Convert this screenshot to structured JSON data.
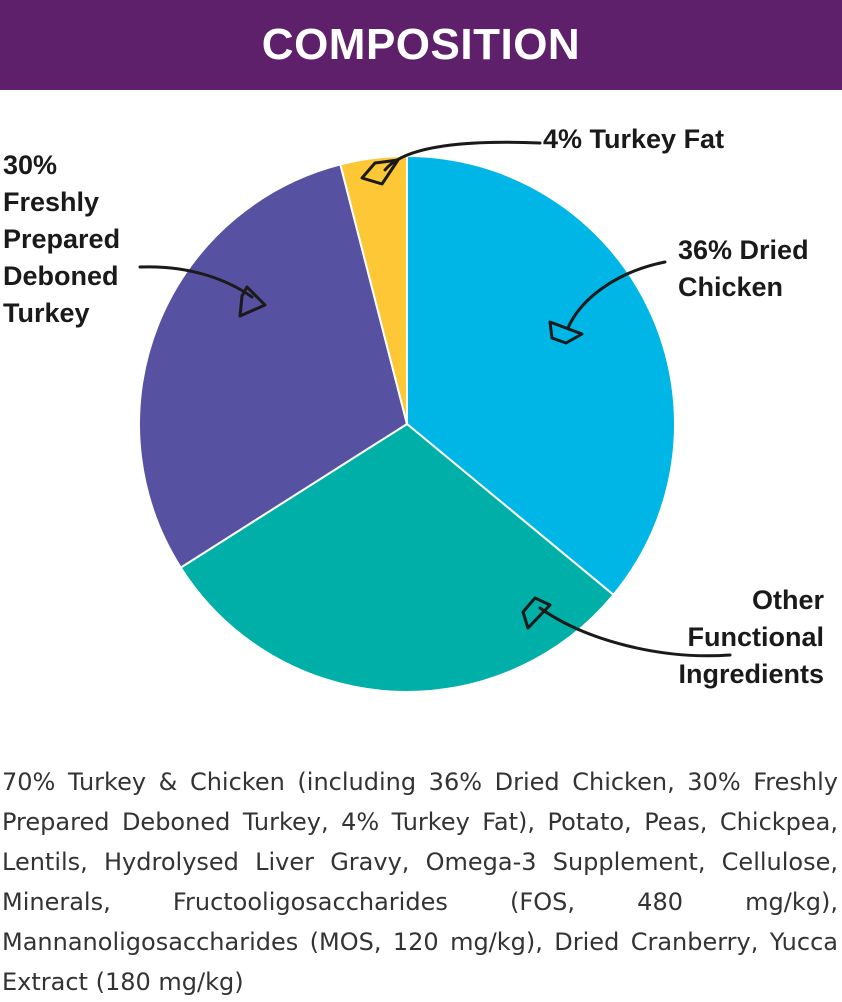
{
  "header": {
    "title": "COMPOSITION"
  },
  "chart_data": {
    "type": "pie",
    "title": "",
    "slices": [
      {
        "label": "36% Dried Chicken",
        "value": 36,
        "color": "#00b6e6"
      },
      {
        "label": "Other Functional Ingredients",
        "value": 30,
        "color": "#00b0a8"
      },
      {
        "label": "30% Freshly Prepared Deboned Turkey",
        "value": 30,
        "color": "#5651a1"
      },
      {
        "label": "4% Turkey Fat",
        "value": 4,
        "color": "#fdc735"
      }
    ]
  },
  "labels": {
    "turkey_fat": "4% Turkey Fat",
    "dried_chicken": "36% Dried\nChicken",
    "deboned_turkey": "30%\nFreshly\nPrepared\nDeboned\nTurkey",
    "other": "Other\nFunctional\nIngredients"
  },
  "ingredients_text": "70% Turkey & Chicken (including 36% Dried Chicken, 30% Freshly Prepared Deboned Turkey, 4% Turkey Fat), Potato, Peas, Chickpea, Lentils,  Hydrolysed Liver Gravy, Omega-3 Supplement, Cellulose, Minerals, Fructooligosaccharides (FOS, 480 mg/kg), Mannanoligosaccharides (MOS, 120 mg/kg), Dried Cranberry, Yucca Extract (180 mg/kg)"
}
